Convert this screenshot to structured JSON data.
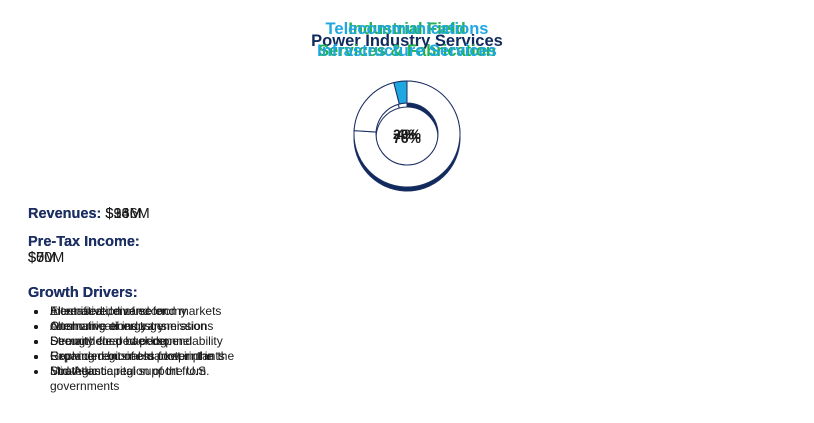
{
  "cards": [
    {
      "title": [
        "Power Industry Services"
      ],
      "color": "#0f2a5c",
      "value": 76,
      "value_label": "76%",
      "revenues_label": "Revenues:",
      "revenues": "$346M",
      "income_label": "Pre-Tax Income:",
      "income": "$50M",
      "drivers_label": "Growth Drivers:",
      "drivers": [
        "Electrification of economy",
        "Alternative energy generation",
        "Demand for power dependability",
        "Replacement of old power plants",
        "Strategic capital support from governments"
      ]
    },
    {
      "title": [
        "Industrial Field",
        "Services & Fabrication"
      ],
      "color": "#22b04b",
      "value": 20,
      "value_label": "20%",
      "revenues_label": "Revenues:",
      "revenues": "$93M",
      "income_label": "Pre-Tax Income:",
      "income": "$7M",
      "drivers_label": "Growth Drivers:",
      "drivers": [
        "Alternative, diverse end markets",
        "Onshoring of industry",
        "Strengthened backlog",
        "Growing regional market in the Southeast"
      ]
    },
    {
      "title": [
        "Telecommunications",
        "Infrastructure Services"
      ],
      "color": "#1ea7e1",
      "value": 4,
      "value_label": "4%",
      "revenues_label": "Revenues:",
      "revenues": "$16M",
      "income_label": "Pre-Tax Income:",
      "income": "$0",
      "drivers_label": "Growth Drivers:",
      "drivers": [
        "Increased demand for communications transmissions",
        "Security cleared personnel",
        "Expanded business footprint in the Mid-Atlantic region of the U.S."
      ]
    }
  ]
}
